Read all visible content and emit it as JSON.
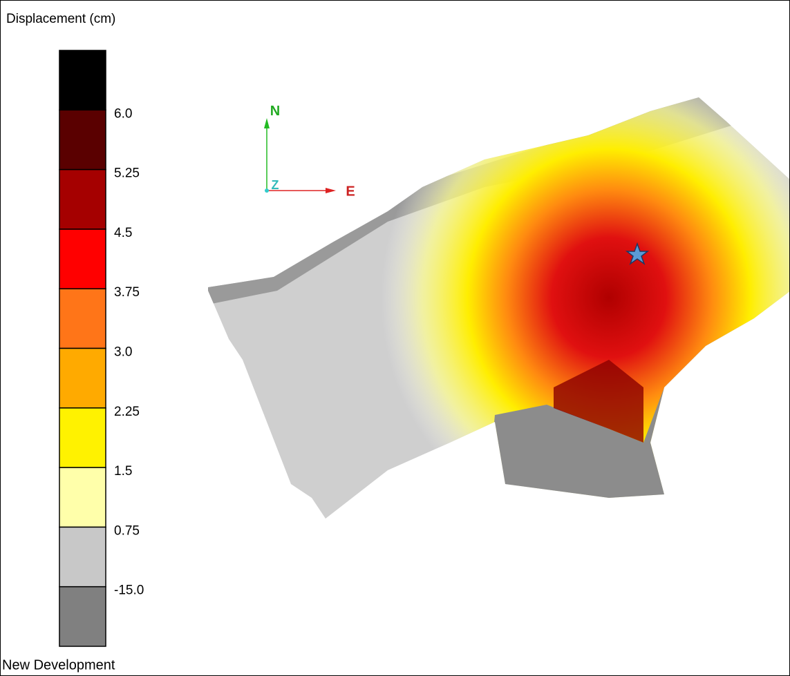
{
  "legend": {
    "title": "Displacement (cm)",
    "classes": [
      {
        "color": "#000000",
        "label": "6.0"
      },
      {
        "color": "#5a0000",
        "label": "5.25"
      },
      {
        "color": "#a50000",
        "label": "4.5"
      },
      {
        "color": "#ff0000",
        "label": "3.75"
      },
      {
        "color": "#ff7518",
        "label": "3.0"
      },
      {
        "color": "#ffaa00",
        "label": "2.25"
      },
      {
        "color": "#fff200",
        "label": "1.5"
      },
      {
        "color": "#ffffaa",
        "label": "0.75"
      },
      {
        "color": "#c8c8c8",
        "label": "-15.0"
      },
      {
        "color": "#808080",
        "label": null
      }
    ],
    "footer": "New Development"
  },
  "compass": {
    "north": "N",
    "east": "E",
    "up": "Z"
  }
}
